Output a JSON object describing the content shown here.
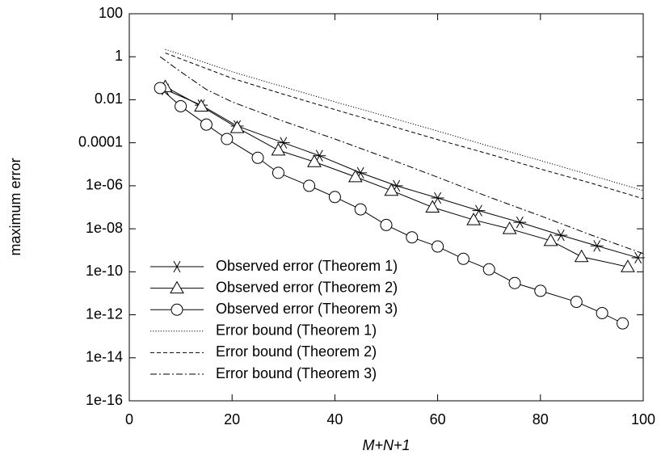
{
  "chart_data": {
    "type": "line",
    "xlabel": "M+N+1",
    "ylabel": "maximum error",
    "xlim": [
      0,
      100
    ],
    "xticks": [
      0,
      20,
      40,
      60,
      80,
      100
    ],
    "ylim": [
      1e-16,
      100
    ],
    "yscale": "log",
    "yticks": [
      100,
      1,
      0.01,
      0.0001,
      {
        "value": 1e-06,
        "label": "1e-06"
      },
      {
        "value": 1e-08,
        "label": "1e-08"
      },
      {
        "value": 1e-10,
        "label": "1e-10"
      },
      {
        "value": 1e-12,
        "label": "1e-12"
      },
      {
        "value": 1e-14,
        "label": "1e-14"
      },
      {
        "value": 1e-16,
        "label": "1e-16"
      }
    ],
    "legend": "lower left",
    "series": [
      {
        "name": "Observed error (Theorem 1)",
        "color": "#000000",
        "marker": "star",
        "dash": "solid",
        "x": [
          7,
          14,
          21,
          30,
          37,
          45,
          52,
          60,
          68,
          76,
          84,
          91,
          99
        ],
        "values": [
          0.03,
          0.0056,
          0.0006,
          0.0001,
          2.5e-05,
          4e-06,
          1e-06,
          2.7e-07,
          7e-08,
          2e-08,
          5e-09,
          1.6e-09,
          4.5e-10
        ]
      },
      {
        "name": "Observed error (Theorem 2)",
        "color": "#000000",
        "marker": "triangle",
        "dash": "solid",
        "x": [
          7,
          14,
          21,
          29,
          36,
          44,
          51,
          59,
          67,
          74,
          82,
          88,
          97
        ],
        "values": [
          0.04,
          0.005,
          0.0005,
          4.5e-05,
          1.3e-05,
          2.6e-06,
          6e-07,
          1e-07,
          2.6e-08,
          1e-08,
          2.8e-09,
          5e-10,
          1.7e-10
        ]
      },
      {
        "name": "Observed error (Theorem 3)",
        "color": "#000000",
        "marker": "circle",
        "dash": "solid",
        "x": [
          6,
          10,
          15,
          19,
          25,
          29,
          35,
          40,
          45,
          50,
          55,
          60,
          65,
          70,
          75,
          80,
          87,
          92,
          96
        ],
        "values": [
          0.035,
          0.005,
          0.0007,
          0.00015,
          2e-05,
          4e-06,
          1e-06,
          3e-07,
          8e-08,
          1.5e-08,
          4e-09,
          1.5e-09,
          4e-10,
          1.3e-10,
          3e-11,
          1.3e-11,
          4e-12,
          1.2e-12,
          4e-13
        ]
      },
      {
        "name": "Error bound (Theorem 1)",
        "color": "#000000",
        "marker": "none",
        "dash": "dotted",
        "x": [
          7,
          10,
          20,
          30,
          40,
          50,
          60,
          70,
          80,
          90,
          100
        ],
        "values": [
          2.2,
          1.3,
          0.2,
          0.04,
          0.008,
          0.0017,
          0.00035,
          7e-05,
          1.5e-05,
          3e-06,
          6e-07
        ]
      },
      {
        "name": "Error bound (Theorem 2)",
        "color": "#000000",
        "marker": "none",
        "dash": "dashed",
        "x": [
          7,
          10,
          20,
          30,
          40,
          50,
          60,
          70,
          80,
          90,
          100
        ],
        "values": [
          1.5,
          0.8,
          0.1,
          0.018,
          0.0035,
          0.0007,
          0.00014,
          3e-05,
          6e-06,
          1.3e-06,
          2.5e-07
        ]
      },
      {
        "name": "Error bound (Theorem 3)",
        "color": "#000000",
        "marker": "none",
        "dash": "dashdot",
        "x": [
          6,
          10,
          15,
          20,
          30,
          40,
          50,
          60,
          70,
          80,
          90,
          100
        ],
        "values": [
          1,
          0.2,
          0.03,
          0.008,
          0.001,
          0.00015,
          2e-05,
          2.5e-06,
          3e-07,
          4e-08,
          5e-09,
          7e-10
        ]
      }
    ]
  }
}
